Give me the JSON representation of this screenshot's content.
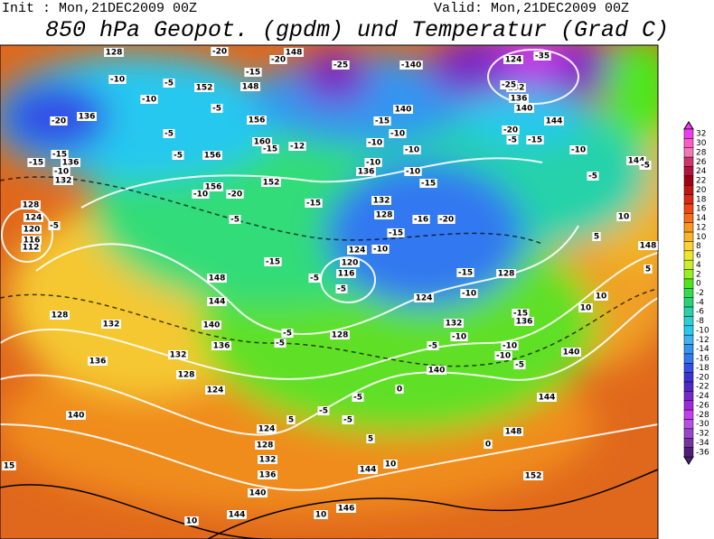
{
  "header": {
    "init": "Init : Mon,21DEC2009 00Z",
    "valid": "Valid: Mon,21DEC2009 00Z",
    "title": "850 hPa Geopot. (gpdm) und Temperatur (Grad C)"
  },
  "legend": {
    "levels": [
      32,
      30,
      28,
      26,
      24,
      22,
      20,
      18,
      16,
      14,
      12,
      10,
      8,
      6,
      4,
      2,
      0,
      -2,
      -4,
      -6,
      -8,
      -10,
      -12,
      -14,
      -16,
      -18,
      -20,
      -22,
      -24,
      -26,
      -28,
      -30,
      -32,
      -34,
      -36
    ],
    "colors": [
      "#f03cf0",
      "#ff5ac8",
      "#f078b4",
      "#d2326e",
      "#b4143c",
      "#a00014",
      "#be1414",
      "#dc2814",
      "#f04614",
      "#f56e14",
      "#fa961e",
      "#fab428",
      "#fad232",
      "#f0e628",
      "#c8f028",
      "#96f01e",
      "#50e61e",
      "#32dc50",
      "#28d278",
      "#28d2aa",
      "#28d2d2",
      "#28c8f0",
      "#3cb4f0",
      "#3296f0",
      "#3278f0",
      "#3250e6",
      "#3c32d2",
      "#5028c8",
      "#7828c8",
      "#a028dc",
      "#c83cf0",
      "#b450e6",
      "#9646c8",
      "#7832a0",
      "#501e78"
    ]
  },
  "map": {
    "contour_labels": [
      "128",
      "-20",
      "148",
      "-25",
      "-140",
      "124",
      "-35",
      "-10",
      "-5",
      "-15",
      "-20",
      "148",
      "152",
      "-5",
      "-5",
      "-20",
      "136",
      "-10",
      "-15",
      "-10",
      "136",
      "132",
      "-15",
      "156",
      "160",
      "156",
      "156",
      "-5",
      "-15",
      "-12",
      "152",
      "-20",
      "-5",
      "-10",
      "-15",
      "-15",
      "128",
      "124",
      "120",
      "116",
      "112",
      "-5",
      "148",
      "144",
      "140",
      "136",
      "132",
      "128",
      "136",
      "132",
      "128",
      "124",
      "-5",
      "116",
      "120",
      "124",
      "-10",
      "-5",
      "128",
      "-5",
      "-5",
      "-10",
      "-10",
      "-15",
      "140",
      "-10",
      "136",
      "-10",
      "-15",
      "132",
      "128",
      "-10",
      "-16",
      "-20",
      "-15",
      "124",
      "-15",
      "128",
      "-10",
      "-5",
      "-10",
      "132",
      "140",
      "136",
      "-15",
      "-10",
      "-10",
      "-5",
      "140",
      "144",
      "-5",
      "-5",
      "-5",
      "0",
      "5",
      "5",
      "124",
      "128",
      "132",
      "136",
      "140",
      "144",
      "144",
      "10",
      "146",
      "148",
      "152",
      "0",
      "140",
      "15",
      "10",
      "10",
      "-10",
      "-5",
      "144",
      "-5",
      "10",
      "148",
      "10",
      "5",
      "10",
      "5",
      "-5",
      "-20",
      "136",
      "132",
      "140",
      "144",
      "-25",
      "-15"
    ]
  }
}
